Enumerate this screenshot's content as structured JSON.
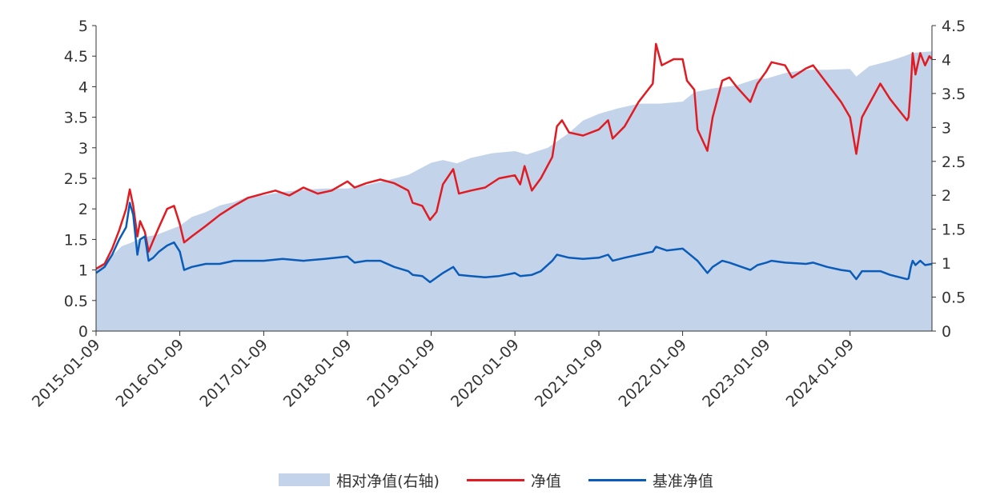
{
  "chart_data": {
    "type": "line",
    "x_tick_labels": [
      "2015-01-09",
      "2016-01-09",
      "2017-01-09",
      "2018-01-09",
      "2019-01-09",
      "2020-01-09",
      "2021-01-09",
      "2022-01-09",
      "2023-01-09",
      "2024-01-09"
    ],
    "x_range": [
      "2015-01-09",
      "2024-12-31"
    ],
    "y_left": {
      "range": [
        0,
        5
      ],
      "ticks": [
        "0",
        "0.5",
        "1",
        "1.5",
        "2",
        "2.5",
        "3",
        "3.5",
        "4",
        "4.5",
        "5"
      ]
    },
    "y_right": {
      "range": [
        0,
        4.5
      ],
      "ticks": [
        "0",
        "0.5",
        "1",
        "1.5",
        "2",
        "2.5",
        "3",
        "3.5",
        "4",
        "4.5"
      ]
    },
    "grid": false,
    "legend_position": "bottom",
    "colors": {
      "relative": "#c3d3ea",
      "nav": "#e01b22",
      "benchmark": "#0a5cb8"
    },
    "legend": {
      "relative": "相对净值(右轴)",
      "nav": "净值",
      "benchmark": "基准净值"
    },
    "series": [
      {
        "key": "relative",
        "name": "相对净值(右轴)",
        "type": "area",
        "axis": "right",
        "points": [
          [
            "2015-01-09",
            0.93
          ],
          [
            "2015-03-01",
            1.05
          ],
          [
            "2015-05-01",
            1.25
          ],
          [
            "2015-06-10",
            1.3
          ],
          [
            "2015-08-01",
            1.38
          ],
          [
            "2015-10-01",
            1.42
          ],
          [
            "2015-12-01",
            1.5
          ],
          [
            "2016-01-09",
            1.55
          ],
          [
            "2016-03-01",
            1.68
          ],
          [
            "2016-05-01",
            1.75
          ],
          [
            "2016-07-01",
            1.85
          ],
          [
            "2016-09-01",
            1.9
          ],
          [
            "2016-11-01",
            1.98
          ],
          [
            "2017-01-09",
            2.0
          ],
          [
            "2017-04-01",
            2.05
          ],
          [
            "2017-07-01",
            2.08
          ],
          [
            "2017-10-01",
            2.1
          ],
          [
            "2018-01-09",
            2.1
          ],
          [
            "2018-04-01",
            2.15
          ],
          [
            "2018-07-01",
            2.22
          ],
          [
            "2018-10-01",
            2.3
          ],
          [
            "2019-01-09",
            2.48
          ],
          [
            "2019-03-01",
            2.52
          ],
          [
            "2019-05-01",
            2.47
          ],
          [
            "2019-07-01",
            2.55
          ],
          [
            "2019-10-01",
            2.62
          ],
          [
            "2020-01-09",
            2.65
          ],
          [
            "2020-03-01",
            2.6
          ],
          [
            "2020-06-01",
            2.7
          ],
          [
            "2020-09-01",
            2.92
          ],
          [
            "2020-11-01",
            3.1
          ],
          [
            "2021-01-09",
            3.2
          ],
          [
            "2021-04-01",
            3.28
          ],
          [
            "2021-07-01",
            3.35
          ],
          [
            "2021-10-01",
            3.35
          ],
          [
            "2022-01-09",
            3.38
          ],
          [
            "2022-03-01",
            3.52
          ],
          [
            "2022-06-01",
            3.58
          ],
          [
            "2022-09-01",
            3.62
          ],
          [
            "2022-12-01",
            3.72
          ],
          [
            "2023-01-09",
            3.72
          ],
          [
            "2023-04-01",
            3.8
          ],
          [
            "2023-07-01",
            3.85
          ],
          [
            "2023-10-01",
            3.85
          ],
          [
            "2024-01-09",
            3.86
          ],
          [
            "2024-02-05",
            3.75
          ],
          [
            "2024-04-01",
            3.9
          ],
          [
            "2024-07-01",
            3.98
          ],
          [
            "2024-09-01",
            4.05
          ],
          [
            "2024-10-10",
            4.1
          ],
          [
            "2024-12-31",
            4.12
          ]
        ]
      },
      {
        "key": "nav",
        "name": "净值",
        "type": "line",
        "axis": "left",
        "points": [
          [
            "2015-01-09",
            1.02
          ],
          [
            "2015-02-15",
            1.1
          ],
          [
            "2015-03-20",
            1.35
          ],
          [
            "2015-04-20",
            1.65
          ],
          [
            "2015-05-20",
            2.0
          ],
          [
            "2015-06-05",
            2.32
          ],
          [
            "2015-06-20",
            2.05
          ],
          [
            "2015-07-08",
            1.55
          ],
          [
            "2015-07-20",
            1.8
          ],
          [
            "2015-08-10",
            1.62
          ],
          [
            "2015-08-26",
            1.3
          ],
          [
            "2015-09-15",
            1.48
          ],
          [
            "2015-10-10",
            1.7
          ],
          [
            "2015-11-15",
            2.0
          ],
          [
            "2015-12-15",
            2.05
          ],
          [
            "2016-01-09",
            1.75
          ],
          [
            "2016-01-28",
            1.45
          ],
          [
            "2016-03-01",
            1.55
          ],
          [
            "2016-05-01",
            1.72
          ],
          [
            "2016-07-01",
            1.9
          ],
          [
            "2016-09-01",
            2.05
          ],
          [
            "2016-11-01",
            2.18
          ],
          [
            "2017-01-09",
            2.25
          ],
          [
            "2017-03-01",
            2.3
          ],
          [
            "2017-05-01",
            2.22
          ],
          [
            "2017-07-01",
            2.35
          ],
          [
            "2017-09-01",
            2.25
          ],
          [
            "2017-11-01",
            2.3
          ],
          [
            "2018-01-09",
            2.45
          ],
          [
            "2018-02-09",
            2.35
          ],
          [
            "2018-04-01",
            2.42
          ],
          [
            "2018-06-01",
            2.48
          ],
          [
            "2018-08-01",
            2.42
          ],
          [
            "2018-10-01",
            2.3
          ],
          [
            "2018-10-20",
            2.1
          ],
          [
            "2018-12-01",
            2.05
          ],
          [
            "2019-01-04",
            1.82
          ],
          [
            "2019-02-01",
            1.95
          ],
          [
            "2019-03-01",
            2.4
          ],
          [
            "2019-04-15",
            2.65
          ],
          [
            "2019-05-10",
            2.25
          ],
          [
            "2019-07-01",
            2.3
          ],
          [
            "2019-09-01",
            2.35
          ],
          [
            "2019-11-01",
            2.5
          ],
          [
            "2020-01-09",
            2.55
          ],
          [
            "2020-02-01",
            2.4
          ],
          [
            "2020-02-20",
            2.7
          ],
          [
            "2020-03-23",
            2.3
          ],
          [
            "2020-05-01",
            2.5
          ],
          [
            "2020-06-20",
            2.85
          ],
          [
            "2020-07-10",
            3.35
          ],
          [
            "2020-08-01",
            3.45
          ],
          [
            "2020-09-01",
            3.25
          ],
          [
            "2020-11-01",
            3.2
          ],
          [
            "2021-01-09",
            3.3
          ],
          [
            "2021-02-18",
            3.45
          ],
          [
            "2021-03-10",
            3.15
          ],
          [
            "2021-05-01",
            3.35
          ],
          [
            "2021-07-01",
            3.75
          ],
          [
            "2021-09-01",
            4.05
          ],
          [
            "2021-09-15",
            4.7
          ],
          [
            "2021-10-10",
            4.35
          ],
          [
            "2021-12-01",
            4.45
          ],
          [
            "2022-01-09",
            4.45
          ],
          [
            "2022-01-28",
            4.1
          ],
          [
            "2022-03-01",
            3.95
          ],
          [
            "2022-03-15",
            3.3
          ],
          [
            "2022-04-27",
            2.95
          ],
          [
            "2022-05-20",
            3.5
          ],
          [
            "2022-07-01",
            4.1
          ],
          [
            "2022-08-01",
            4.15
          ],
          [
            "2022-09-01",
            4.0
          ],
          [
            "2022-10-31",
            3.75
          ],
          [
            "2022-12-01",
            4.05
          ],
          [
            "2023-01-09",
            4.25
          ],
          [
            "2023-02-01",
            4.4
          ],
          [
            "2023-04-01",
            4.35
          ],
          [
            "2023-05-01",
            4.15
          ],
          [
            "2023-07-01",
            4.3
          ],
          [
            "2023-08-01",
            4.35
          ],
          [
            "2023-10-01",
            4.05
          ],
          [
            "2023-12-01",
            3.75
          ],
          [
            "2024-01-09",
            3.5
          ],
          [
            "2024-02-05",
            2.9
          ],
          [
            "2024-03-01",
            3.5
          ],
          [
            "2024-05-20",
            4.05
          ],
          [
            "2024-07-01",
            3.8
          ],
          [
            "2024-09-13",
            3.45
          ],
          [
            "2024-09-20",
            3.5
          ],
          [
            "2024-09-30",
            4.0
          ],
          [
            "2024-10-08",
            4.55
          ],
          [
            "2024-10-20",
            4.2
          ],
          [
            "2024-11-10",
            4.55
          ],
          [
            "2024-12-01",
            4.35
          ],
          [
            "2024-12-20",
            4.5
          ],
          [
            "2024-12-31",
            4.45
          ]
        ]
      },
      {
        "key": "benchmark",
        "name": "基准净值",
        "type": "line",
        "axis": "left",
        "points": [
          [
            "2015-01-09",
            0.95
          ],
          [
            "2015-02-15",
            1.05
          ],
          [
            "2015-03-20",
            1.25
          ],
          [
            "2015-04-20",
            1.5
          ],
          [
            "2015-05-20",
            1.7
          ],
          [
            "2015-06-05",
            2.1
          ],
          [
            "2015-06-20",
            1.9
          ],
          [
            "2015-07-08",
            1.25
          ],
          [
            "2015-07-20",
            1.5
          ],
          [
            "2015-08-10",
            1.55
          ],
          [
            "2015-08-26",
            1.15
          ],
          [
            "2015-09-15",
            1.2
          ],
          [
            "2015-10-10",
            1.3
          ],
          [
            "2015-11-15",
            1.4
          ],
          [
            "2015-12-15",
            1.45
          ],
          [
            "2016-01-09",
            1.3
          ],
          [
            "2016-01-28",
            1.0
          ],
          [
            "2016-03-01",
            1.05
          ],
          [
            "2016-05-01",
            1.1
          ],
          [
            "2016-07-01",
            1.1
          ],
          [
            "2016-09-01",
            1.15
          ],
          [
            "2016-11-01",
            1.15
          ],
          [
            "2017-01-09",
            1.15
          ],
          [
            "2017-04-01",
            1.18
          ],
          [
            "2017-07-01",
            1.15
          ],
          [
            "2017-10-01",
            1.18
          ],
          [
            "2018-01-09",
            1.22
          ],
          [
            "2018-02-09",
            1.12
          ],
          [
            "2018-04-01",
            1.15
          ],
          [
            "2018-06-01",
            1.15
          ],
          [
            "2018-08-01",
            1.05
          ],
          [
            "2018-10-01",
            0.98
          ],
          [
            "2018-10-20",
            0.92
          ],
          [
            "2018-12-01",
            0.9
          ],
          [
            "2019-01-04",
            0.8
          ],
          [
            "2019-03-01",
            0.95
          ],
          [
            "2019-04-15",
            1.05
          ],
          [
            "2019-05-10",
            0.92
          ],
          [
            "2019-07-01",
            0.9
          ],
          [
            "2019-09-01",
            0.88
          ],
          [
            "2019-11-01",
            0.9
          ],
          [
            "2020-01-09",
            0.95
          ],
          [
            "2020-02-01",
            0.9
          ],
          [
            "2020-03-23",
            0.92
          ],
          [
            "2020-05-01",
            0.98
          ],
          [
            "2020-06-20",
            1.15
          ],
          [
            "2020-07-10",
            1.25
          ],
          [
            "2020-09-01",
            1.2
          ],
          [
            "2020-11-01",
            1.18
          ],
          [
            "2021-01-09",
            1.2
          ],
          [
            "2021-02-18",
            1.25
          ],
          [
            "2021-03-10",
            1.15
          ],
          [
            "2021-05-01",
            1.2
          ],
          [
            "2021-07-01",
            1.25
          ],
          [
            "2021-09-01",
            1.3
          ],
          [
            "2021-09-15",
            1.38
          ],
          [
            "2021-11-01",
            1.32
          ],
          [
            "2022-01-09",
            1.35
          ],
          [
            "2022-02-01",
            1.28
          ],
          [
            "2022-03-15",
            1.15
          ],
          [
            "2022-04-27",
            0.95
          ],
          [
            "2022-05-20",
            1.05
          ],
          [
            "2022-07-01",
            1.15
          ],
          [
            "2022-08-01",
            1.12
          ],
          [
            "2022-10-31",
            1.0
          ],
          [
            "2022-12-01",
            1.08
          ],
          [
            "2023-01-09",
            1.12
          ],
          [
            "2023-02-01",
            1.15
          ],
          [
            "2023-04-01",
            1.12
          ],
          [
            "2023-07-01",
            1.1
          ],
          [
            "2023-08-01",
            1.12
          ],
          [
            "2023-10-01",
            1.05
          ],
          [
            "2023-12-01",
            1.0
          ],
          [
            "2024-01-09",
            0.98
          ],
          [
            "2024-02-05",
            0.85
          ],
          [
            "2024-03-01",
            0.98
          ],
          [
            "2024-05-20",
            0.98
          ],
          [
            "2024-07-01",
            0.92
          ],
          [
            "2024-09-13",
            0.85
          ],
          [
            "2024-09-20",
            0.86
          ],
          [
            "2024-09-30",
            1.05
          ],
          [
            "2024-10-08",
            1.15
          ],
          [
            "2024-10-20",
            1.08
          ],
          [
            "2024-11-10",
            1.15
          ],
          [
            "2024-12-01",
            1.08
          ],
          [
            "2024-12-31",
            1.1
          ]
        ]
      }
    ]
  }
}
